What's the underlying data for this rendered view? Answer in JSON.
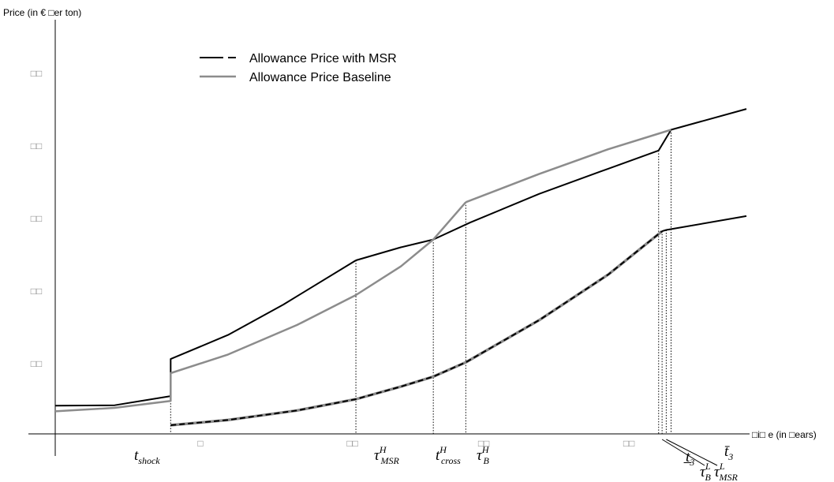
{
  "chart_data": {
    "type": "line",
    "title": "",
    "ylabel": "Price (in € □er ton)",
    "xlabel": "□i□ e (in □ears)",
    "x_tick_labels": [
      "□",
      "□□",
      "□□",
      "□□"
    ],
    "y_tick_labels": [
      "□□",
      "□□",
      "□□",
      "□□",
      "□□"
    ],
    "legend": {
      "placement": "top-center",
      "entries": [
        {
          "label": "Allowance Price with MSR",
          "style": "black solid/dashed"
        },
        {
          "label": "Allowance Price Baseline",
          "style": "gray solid"
        }
      ]
    },
    "colors": {
      "msr": "#000000",
      "baseline": "#8c8c8c",
      "axis": "#000000",
      "ticks": "#8a8a8a"
    },
    "xlim": [
      0,
      10.4
    ],
    "ylim": [
      -0.04,
      1.0
    ],
    "grid": false,
    "series": [
      {
        "name": "Allowance Price with MSR",
        "group": "high",
        "color": "#000000",
        "width": 2,
        "points": [
          [
            0,
            0.065
          ],
          [
            0.86,
            0.066
          ],
          [
            1.67,
            0.087
          ],
          [
            1.67,
            0.1725
          ],
          [
            2.5,
            0.228
          ],
          [
            3.3,
            0.298
          ],
          [
            4.35,
            0.4
          ]
        ]
      },
      {
        "name": "Allowance Price with MSR",
        "group": "high",
        "color": "#000000",
        "width": 2,
        "points": [
          [
            4.35,
            0.4
          ],
          [
            5.0,
            0.43
          ],
          [
            5.47,
            0.448
          ],
          [
            6.0,
            0.487
          ],
          [
            7.0,
            0.553
          ],
          [
            8.0,
            0.611
          ],
          [
            8.73,
            0.653
          ]
        ]
      },
      {
        "name": "Allowance Price with MSR",
        "group": "high",
        "color": "#000000",
        "width": 2,
        "points": [
          [
            8.73,
            0.653
          ],
          [
            8.91,
            0.701
          ],
          [
            10.0,
            0.749
          ]
        ]
      },
      {
        "name": "Allowance Price Baseline",
        "group": "high",
        "color": "#8c8c8c",
        "width": 2.5,
        "points": [
          [
            0,
            0.052
          ],
          [
            0.86,
            0.06
          ],
          [
            1.67,
            0.076
          ],
          [
            1.67,
            0.14
          ],
          [
            2.5,
            0.183
          ],
          [
            3.5,
            0.251
          ],
          [
            4.35,
            0.32
          ],
          [
            5.0,
            0.386
          ],
          [
            5.47,
            0.448
          ],
          [
            5.94,
            0.534
          ]
        ]
      },
      {
        "name": "Allowance Price Baseline",
        "group": "high",
        "color": "#8c8c8c",
        "width": 2.5,
        "points": [
          [
            5.94,
            0.534
          ],
          [
            7.0,
            0.599
          ],
          [
            8.0,
            0.656
          ],
          [
            8.91,
            0.701
          ]
        ]
      },
      {
        "name": "Allowance Price Baseline",
        "group": "low",
        "color": "#8c8c8c",
        "width": 3.5,
        "points": [
          [
            1.67,
            0.02
          ],
          [
            2.5,
            0.032
          ],
          [
            3.5,
            0.054
          ],
          [
            4.35,
            0.08
          ],
          [
            5.0,
            0.109
          ],
          [
            5.47,
            0.132
          ],
          [
            5.94,
            0.165
          ],
          [
            7.0,
            0.262
          ],
          [
            8.0,
            0.367
          ],
          [
            8.78,
            0.467
          ]
        ]
      },
      {
        "name": "Allowance Price with MSR",
        "group": "low",
        "color": "#000000",
        "width": 2,
        "dash": "7 4",
        "points": [
          [
            1.67,
            0.02
          ],
          [
            2.5,
            0.032
          ],
          [
            3.5,
            0.054
          ],
          [
            4.35,
            0.08
          ],
          [
            5.0,
            0.109
          ],
          [
            5.47,
            0.132
          ],
          [
            5.94,
            0.165
          ],
          [
            7.0,
            0.262
          ],
          [
            8.0,
            0.367
          ],
          [
            8.78,
            0.467
          ]
        ]
      },
      {
        "name": "Allowance Price with MSR",
        "group": "low",
        "color": "#000000",
        "width": 2,
        "points": [
          [
            8.78,
            0.467
          ],
          [
            8.84,
            0.47
          ],
          [
            10.0,
            0.502
          ]
        ]
      }
    ],
    "vertical_markers": [
      {
        "x": 1.67,
        "y_top": 0.1725,
        "label_main": "t",
        "label_sub": "shock",
        "label_sup": ""
      },
      {
        "x": 4.35,
        "y_top": 0.4,
        "label_main": "τ",
        "label_sub": "MSR",
        "label_sup": "H"
      },
      {
        "x": 5.47,
        "y_top": 0.448,
        "label_main": "t",
        "label_sub": "cross",
        "label_sup": "H"
      },
      {
        "x": 5.94,
        "y_top": 0.534,
        "label_main": "τ",
        "label_sub": "B",
        "label_sup": "H"
      },
      {
        "x": 8.73,
        "y_top": 0.653,
        "label_main": "t̲",
        "label_sub": "3",
        "label_sup": ""
      },
      {
        "x": 8.78,
        "y_top": 0.467,
        "label_main": "τ",
        "label_sub": "B",
        "label_sup": "L"
      },
      {
        "x": 8.84,
        "y_top": 0.47,
        "label_main": "τ",
        "label_sub": "MSR",
        "label_sup": "L"
      },
      {
        "x": 8.91,
        "y_top": 0.701,
        "label_main": "t̄",
        "label_sub": "3",
        "label_sup": ""
      }
    ]
  }
}
